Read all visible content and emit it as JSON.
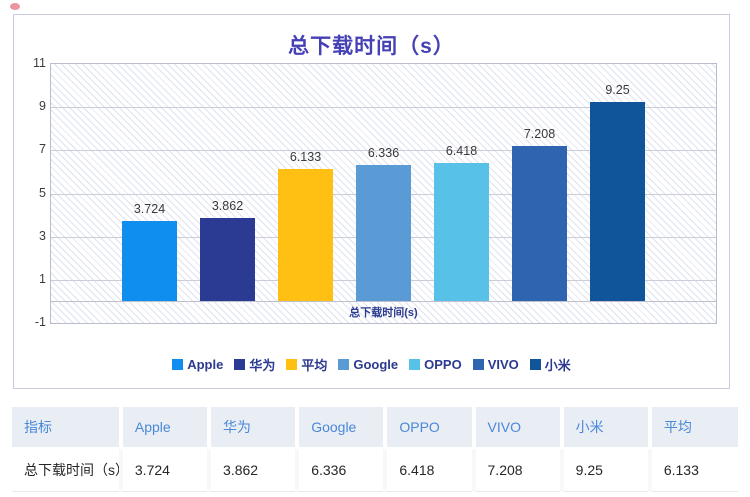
{
  "indicator": {
    "dot_color": "#e8848e"
  },
  "chart": {
    "title": "总下载时间（s）",
    "x_axis_label": "总下载时间(s)",
    "y_ticks": [
      11,
      9,
      7,
      5,
      3,
      1,
      -1
    ],
    "title_color": "#4540b6",
    "axis_label_color": "#2b3a8f"
  },
  "chart_data": {
    "type": "bar",
    "title": "总下载时间（s）",
    "xlabel": "总下载时间(s)",
    "ylabel": "",
    "ylim": [
      -1,
      11
    ],
    "grid": true,
    "legend_position": "bottom",
    "categories": [
      "Apple",
      "华为",
      "平均",
      "Google",
      "OPPO",
      "VIVO",
      "小米"
    ],
    "values": [
      3.724,
      3.862,
      6.133,
      6.336,
      6.418,
      7.208,
      9.25
    ],
    "value_labels": [
      "3.724",
      "3.862",
      "6.133",
      "6.336",
      "6.418",
      "7.208",
      "9.25"
    ],
    "colors": [
      "#0f8ef0",
      "#2b3a92",
      "#ffc013",
      "#5b9bd5",
      "#57c1e8",
      "#2f65b0",
      "#10559a"
    ]
  },
  "legend": {
    "items": [
      {
        "label": "Apple",
        "color": "#0f8ef0"
      },
      {
        "label": "华为",
        "color": "#2b3a92"
      },
      {
        "label": "平均",
        "color": "#ffc013"
      },
      {
        "label": "Google",
        "color": "#5b9bd5"
      },
      {
        "label": "OPPO",
        "color": "#57c1e8"
      },
      {
        "label": "VIVO",
        "color": "#2f65b0"
      },
      {
        "label": "小米",
        "color": "#10559a"
      }
    ]
  },
  "table": {
    "headers": [
      "指标",
      "Apple",
      "华为",
      "Google",
      "OPPO",
      "VIVO",
      "小米",
      "平均"
    ],
    "rows": [
      [
        "总下载时间（s）",
        "3.724",
        "3.862",
        "6.336",
        "6.418",
        "7.208",
        "9.25",
        "6.133"
      ]
    ],
    "header_bg": "#e9edf4",
    "header_text_color": "#4a88d8"
  }
}
